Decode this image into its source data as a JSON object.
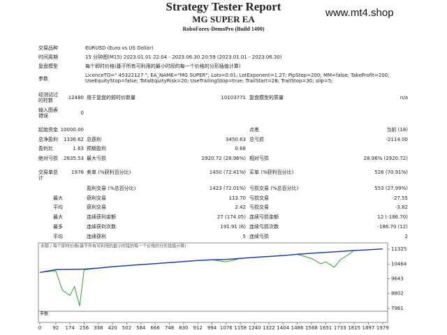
{
  "header": {
    "title": "Strategy Tester Report",
    "subtitle": "MG SUPER EA",
    "server": "RoboForex-DemoPro (Build 1400)",
    "watermark": "www.mt4.shop"
  },
  "info_rows": [
    {
      "label": "交易品种",
      "value": "EURUSD (Euro vs US Dollar)"
    },
    {
      "label": "时间周期",
      "value": "15 分钟图(M15) 2023.01.01 22:04 - 2023.06.30 20:59 (2023.01.01 - 2023.06.30)"
    },
    {
      "label": "复盘模型",
      "value": "每个即时价格(基于所有可利用的最小时段的每一个价格的分形插值计算)"
    },
    {
      "label": "参数",
      "value": "LicenceTO=\" 45322127 \"; EA_NAME=\"MG SUPER\"; Lots=0.01; LotExponent=1.27; PipStep=200; MM=false; TakeProfit=200; UseEquityStop=false; TotalEquityRisk=20; UseTrailingStop=true; TrailStart=28; TrailStop=30; slip=5;"
    }
  ],
  "stats_rows": [
    {
      "label1": "经测试过的柱数",
      "value1": "12480",
      "label2": "用于复盘的即时价数量",
      "value2": "10103771",
      "label3": "复盘模型的质量",
      "value3": "n/a"
    },
    {
      "label1": "输入图表错误",
      "value1": "0"
    },
    {
      "label1": "起始资金",
      "value1": "10000.00",
      "label3": "点差",
      "value3": "当前 (18)"
    },
    {
      "label1": "总净盈利",
      "value1": "1336.62",
      "label2": "总获利",
      "value2": "3450.63",
      "label3": "总亏损",
      "value3": "-2114.00"
    },
    {
      "label1": "盈利比",
      "value1": "1.63",
      "label2": "预期盈利",
      "value2": "0.68"
    },
    {
      "label1": "绝对亏损",
      "value1": "2835.53",
      "label2": "最大亏损",
      "value2": "2920.72 (28.96%)",
      "label3": "相对亏损",
      "value3": "28.96% (2920.72)"
    },
    {
      "label1": "交易单总计",
      "value1": "1976",
      "label2": "卖单 (%获利百分比)",
      "value2": "1450 (72.41%)",
      "label3": "买单 (%获利百分比)",
      "value3": "526 (70.91%)"
    },
    {
      "label2": "盈利交易 (%总百分比)",
      "value2": "1423 (72.01%)",
      "label3": "亏损交易 (%总百分比)",
      "value3": "553 (27.99%)"
    },
    {
      "prefix": "最大",
      "label2": "获利交易",
      "value2": "113.70",
      "label3": "亏损交易",
      "value3": "-27.55"
    },
    {
      "prefix": "平均",
      "label2": "获利交易",
      "value2": "2.42",
      "label3": "亏损交易",
      "value3": "-3.82"
    },
    {
      "prefix": "最大",
      "label2": "连续获利金额",
      "value2": "27 (174.05)",
      "label3": "连续亏损金额",
      "value3": "12 (-186.70)"
    },
    {
      "prefix": "最多",
      "label2": "连续获利次数",
      "value2": "191.91 (6)",
      "label3": "连续亏损次数",
      "value3": "-186.70 (12)"
    },
    {
      "prefix": "平均",
      "label2": "连续获利",
      "value2": "5",
      "label3": "连续亏损",
      "value3": "2"
    }
  ],
  "chart_data": {
    "type": "line",
    "legend_text": "余额 / 每个即时价格(基于所有可利用的最小时段的每一个价格的分形插值计算)",
    "lots_label": "手数",
    "x": [
      0,
      92,
      130,
      174,
      200,
      230,
      256,
      338,
      420,
      502,
      584,
      666,
      748,
      830,
      912,
      994,
      1076,
      1158,
      1240,
      1322,
      1404,
      1486,
      1568,
      1620,
      1651,
      1700,
      1733,
      1815,
      1897,
      1979
    ],
    "series": [
      {
        "color": "#1a3ea8",
        "values": [
          10000,
          10160,
          10170,
          10175,
          10180,
          10185,
          10190,
          10250,
          10330,
          10390,
          10450,
          10500,
          10560,
          10620,
          10680,
          10720,
          10740,
          10800,
          10860,
          10910,
          10960,
          11030,
          11090,
          11120,
          11140,
          11170,
          11190,
          11250,
          11290,
          11336
        ]
      },
      {
        "color": "#2ca02c",
        "values": [
          10000,
          10100,
          9000,
          8700,
          9200,
          8100,
          10150,
          10250,
          10330,
          10390,
          10450,
          10500,
          10560,
          10620,
          10680,
          10720,
          10600,
          10800,
          10860,
          10910,
          10960,
          11030,
          10800,
          10500,
          10600,
          10300,
          10700,
          11250,
          11290,
          11336
        ]
      }
    ],
    "xlim": [
      -8,
      2008
    ],
    "ylim": [
      7800,
      11680
    ],
    "xticks": [
      0,
      92,
      174,
      256,
      338,
      420,
      502,
      584,
      666,
      748,
      830,
      912,
      994,
      1076,
      1158,
      1240,
      1322,
      1404,
      1486,
      1568,
      1651,
      1733,
      1815,
      1897,
      1979
    ],
    "yticks": [
      11325,
      10464,
      9643,
      8802,
      7961
    ]
  }
}
